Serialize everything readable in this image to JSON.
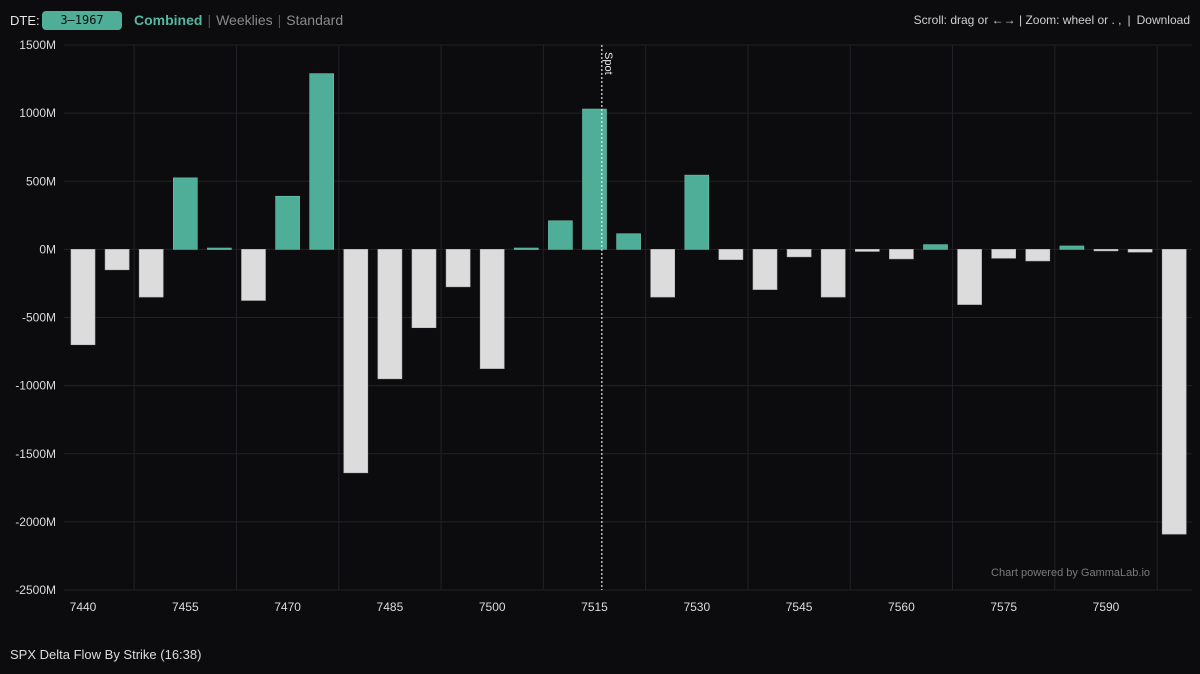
{
  "header": {
    "dte_label": "DTE:",
    "dte_value": "3–1967",
    "modes": [
      {
        "label": "Combined",
        "active": true
      },
      {
        "label": "Weeklies",
        "active": false
      },
      {
        "label": "Standard",
        "active": false
      }
    ],
    "help_text": "Scroll: drag or ←→ | Zoom: wheel or . ,",
    "download_label": "Download"
  },
  "footer": {
    "caption": "SPX Delta Flow By Strike (16:38)"
  },
  "watermark": "Chart powered by GammaLab.io",
  "colors": {
    "positive": "#4fae98",
    "negative": "#dcdcdc",
    "background": "#0c0c0e",
    "grid": "#222226"
  },
  "chart_data": {
    "type": "bar",
    "title": "SPX Delta Flow By Strike (16:38)",
    "xlabel": "",
    "ylabel": "",
    "x_tick_labels": [
      "7440",
      "7455",
      "7470",
      "7485",
      "7500",
      "7515",
      "7530",
      "7545",
      "7560",
      "7575",
      "7590"
    ],
    "y_tick_labels": [
      "1500M",
      "1000M",
      "500M",
      "0M",
      "-500M",
      "-1000M",
      "-1500M",
      "-2000M",
      "-2500M"
    ],
    "ylim": [
      -2500,
      1500
    ],
    "y_unit": "M",
    "grid": true,
    "spot_label": "Spot",
    "spot_strike": 7516,
    "strikes": [
      7440,
      7445,
      7450,
      7455,
      7460,
      7465,
      7470,
      7475,
      7480,
      7485,
      7490,
      7495,
      7500,
      7505,
      7510,
      7515,
      7520,
      7525,
      7530,
      7535,
      7540,
      7545,
      7550,
      7555,
      7560,
      7565,
      7570,
      7575,
      7580,
      7585,
      7590,
      7595,
      7600
    ],
    "values": [
      -700,
      -150,
      -350,
      525,
      10,
      -375,
      390,
      1290,
      -1640,
      -950,
      -575,
      -275,
      -875,
      10,
      210,
      1030,
      115,
      -350,
      545,
      -75,
      -295,
      -55,
      -350,
      -15,
      -70,
      35,
      -405,
      -65,
      -85,
      25,
      -5,
      -20,
      -2090
    ]
  }
}
